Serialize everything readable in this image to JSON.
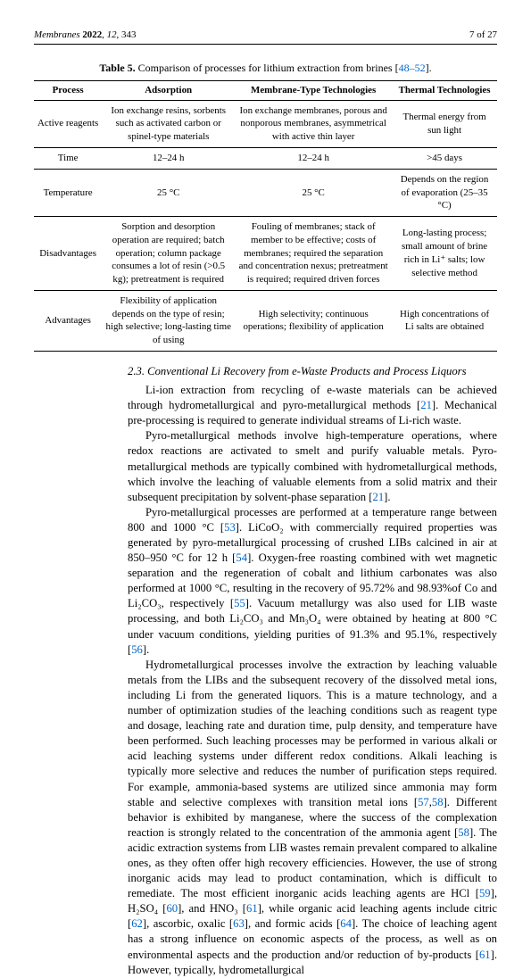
{
  "header": {
    "journal": "Membranes",
    "year": "2022",
    "vol": "12",
    "art": "343",
    "pageinfo": "7 of 27"
  },
  "table": {
    "caption_label": "Table 5.",
    "caption_text": "Comparison of processes for lithium extraction from brines [",
    "caption_ref": "48–52",
    "caption_tail": "].",
    "columns": [
      "Process",
      "Adsorption",
      "Membrane-Type Technologies",
      "Thermal Technologies"
    ],
    "rows": [
      [
        "Active reagents",
        "Ion exchange resins, sorbents such as activated carbon or spinel-type materials",
        "Ion exchange membranes, porous and nonporous membranes, asymmetrical with active thin layer",
        "Thermal energy from sun light"
      ],
      [
        "Time",
        "12–24 h",
        "12–24 h",
        ">45 days"
      ],
      [
        "Temperature",
        "25 °C",
        "25 °C",
        "Depends on the region of evaporation (25–35 °C)"
      ],
      [
        "Disadvantages",
        "Sorption and desorption operation are required; batch operation; column package consumes a lot of resin (>0.5 kg); pretreatment is required",
        "Fouling of membranes; stack of member to be effective; costs of membranes; required the separation and concentration nexus; pretreatment is required; required driven forces",
        "Long-lasting process; small amount of brine rich in Li⁺ salts; low selective method"
      ],
      [
        "Advantages",
        "Flexibility of application depends on the type of resin; high selective; long-lasting time of using",
        "High selectivity; continuous operations; flexibility of application",
        "High concentrations of Li salts are obtained"
      ]
    ]
  },
  "section": {
    "title": "2.3. Conventional Li Recovery from e-Waste Products and Process Liquors",
    "p1a": "Li-ion extraction from recycling of e-waste materials can be achieved through hydrometallurgical and pyro-metallurgical methods [",
    "p1r1": "21",
    "p1b": "]. Mechanical pre-processing is required to generate individual streams of Li-rich waste.",
    "p2a": "Pyro-metallurgical methods involve high-temperature operations, where redox reactions are activated to smelt and purify valuable metals. Pyro-metallurgical methods are typically combined with hydrometallurgical methods, which involve the leaching of valuable elements from a solid matrix and their subsequent precipitation by solvent-phase separation [",
    "p2r1": "21",
    "p2b": "].",
    "p3a": "Pyro-metallurgical processes are performed at a temperature range between 800 and 1000 °C [",
    "p3r1": "53",
    "p3b": "]. LiCoO₂ with commercially required properties was generated by pyro-metallurgical processing of crushed LIBs calcined in air at 850–950 °C for 12 h [",
    "p3r2": "54",
    "p3c": "]. Oxygen-free roasting combined with wet magnetic separation and the regeneration of cobalt and lithium carbonates was also performed at 1000 °C, resulting in the recovery of 95.72% and 98.93%of Co and Li₂CO₃, respectively [",
    "p3r3": "55",
    "p3d": "]. Vacuum metallurgy was also used for LIB waste processing, and both Li₂CO₃ and Mn₃O₄ were obtained by heating at 800 °C under vacuum conditions, yielding purities of 91.3% and 95.1%, respectively [",
    "p3r4": "56",
    "p3e": "].",
    "p4a": "Hydrometallurgical processes involve the extraction by leaching valuable metals from the LIBs and the subsequent recovery of the dissolved metal ions, including Li from the generated liquors. This is a mature technology, and a number of optimization studies of the leaching conditions such as reagent type and dosage, leaching rate and duration time, pulp density, and temperature have been performed. Such leaching processes may be performed in various alkali or acid leaching systems under different redox conditions. Alkali leaching is typically more selective and reduces the number of purification steps required. For example, ammonia-based systems are utilized since ammonia may form stable and selective complexes with transition metal ions [",
    "p4r1": "57",
    "p4comma": ",",
    "p4r2": "58",
    "p4b": "]. Different behavior is exhibited by manganese, where the success of the complexation reaction is strongly related to the concentration of the ammonia agent [",
    "p4r3": "58",
    "p4c": "]. The acidic extraction systems from LIB wastes remain prevalent compared to alkaline ones, as they often offer high recovery efficiencies. However, the use of strong inorganic acids may lead to product contamination, which is difficult to remediate. The most efficient inorganic acids leaching agents are HCl [",
    "p4r4": "59",
    "p4d": "], H₂SO₄ [",
    "p4r5": "60",
    "p4e": "], and HNO₃ [",
    "p4r6": "61",
    "p4f": "], while organic acid leaching agents include citric [",
    "p4r7": "62",
    "p4g": "], ascorbic, oxalic [",
    "p4r8": "63",
    "p4h": "], and formic acids [",
    "p4r9": "64",
    "p4i": "]. The choice of leaching agent has a strong influence on economic aspects of the process, as well as on environmental aspects and the production and/or reduction of by-products [",
    "p4r10": "61",
    "p4j": "]. However, typically, hydrometallurgical"
  }
}
